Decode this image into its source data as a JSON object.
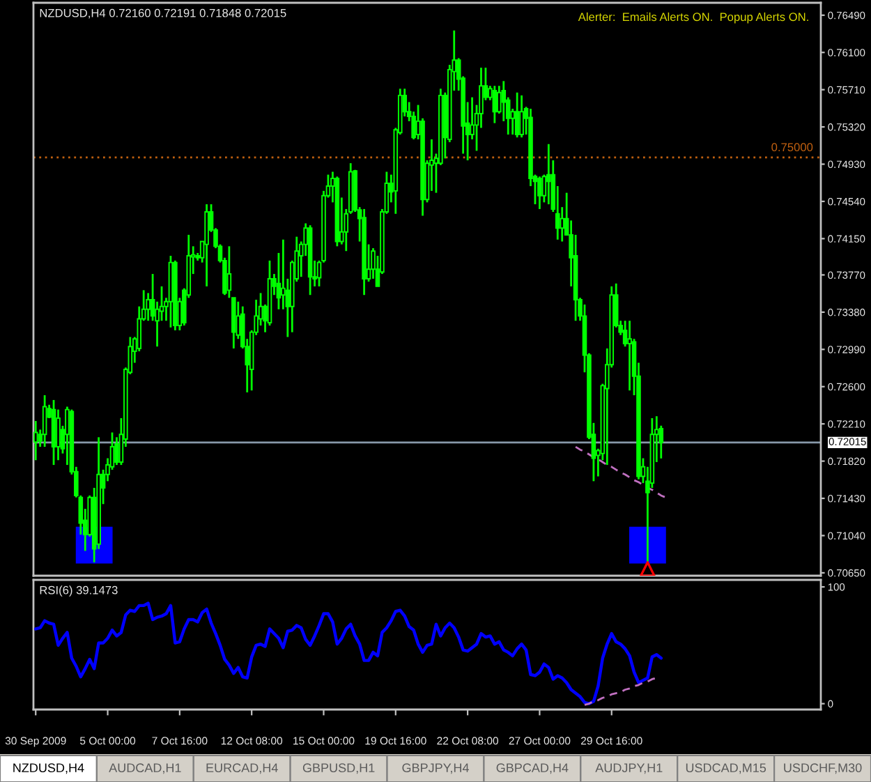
{
  "chart_data": [
    {
      "type": "candlestick",
      "title": "NZDUSD,H4 0.72160 0.72191 0.71848 0.72015",
      "color": "#00ff00",
      "categories": [
        null,
        null,
        null,
        null,
        null,
        null,
        null,
        null,
        null,
        null,
        null,
        null,
        null,
        null,
        null,
        null,
        null,
        null,
        null,
        null,
        null,
        null,
        null,
        null,
        null,
        null,
        null,
        null,
        null,
        null,
        null,
        null,
        null,
        null,
        null,
        null,
        null,
        null,
        null,
        null,
        null,
        null,
        null,
        null,
        null,
        null,
        null,
        null,
        null,
        null,
        null,
        null,
        null,
        null,
        null,
        null,
        null,
        null,
        null,
        null,
        null,
        null,
        null,
        null,
        null,
        null,
        null,
        null,
        null,
        null,
        null,
        null,
        null,
        null,
        null,
        null,
        null,
        null,
        null,
        null,
        null,
        null,
        null,
        null,
        null,
        null,
        null,
        null,
        null,
        null,
        null,
        null,
        null,
        null,
        null,
        null,
        null,
        null,
        null,
        null,
        null,
        null,
        null,
        null,
        null,
        null,
        null,
        null,
        null,
        null,
        null,
        null,
        null,
        null,
        null,
        null,
        null,
        null,
        null,
        null,
        null,
        null,
        null,
        null,
        null,
        null,
        null,
        null,
        null,
        null,
        null,
        null,
        null,
        null,
        null,
        null,
        null,
        null,
        null,
        null,
        null,
        null,
        null,
        null,
        null,
        null,
        null,
        null,
        null,
        null,
        null,
        null,
        null,
        null,
        null,
        null,
        null,
        null,
        null,
        null,
        null,
        null,
        null,
        null,
        null,
        null,
        null,
        null,
        null,
        null,
        null,
        null,
        null,
        null,
        null
      ],
      "ohlc": [
        [
          0.7202,
          0.7224,
          0.7183,
          0.7212
        ],
        [
          0.721,
          0.7215,
          0.7197,
          0.7203
        ],
        [
          0.721,
          0.7251,
          0.7197,
          0.7239
        ],
        [
          0.7237,
          0.7241,
          0.7227,
          0.7228
        ],
        [
          0.7236,
          0.7246,
          0.7178,
          0.7197
        ],
        [
          0.7197,
          0.7236,
          0.7183,
          0.7227
        ],
        [
          0.7215,
          0.7219,
          0.719,
          0.7195
        ],
        [
          0.721,
          0.7239,
          0.7178,
          0.7236
        ],
        [
          0.7234,
          0.7236,
          0.7168,
          0.7171
        ],
        [
          0.7171,
          0.7176,
          0.7144,
          0.7146
        ],
        [
          0.7144,
          0.7146,
          0.7105,
          0.7117
        ],
        [
          0.712,
          0.7132,
          0.7088,
          0.7105
        ],
        [
          0.7105,
          0.7146,
          0.7103,
          0.7144
        ],
        [
          0.7144,
          0.7154,
          0.7076,
          0.709
        ],
        [
          0.7095,
          0.7207,
          0.709,
          0.7168
        ],
        [
          0.7168,
          0.7173,
          0.7137,
          0.7154
        ],
        [
          0.7168,
          0.7185,
          0.7161,
          0.7178
        ],
        [
          0.7176,
          0.7212,
          0.7173,
          0.7197
        ],
        [
          0.72,
          0.7207,
          0.7178,
          0.7181
        ],
        [
          0.7181,
          0.7227,
          0.7178,
          0.721
        ],
        [
          0.7205,
          0.728,
          0.7197,
          0.7278
        ],
        [
          0.7275,
          0.7312,
          0.7273,
          0.7302
        ],
        [
          0.7297,
          0.7312,
          0.7285,
          0.731
        ],
        [
          0.73,
          0.7344,
          0.7297,
          0.7331
        ],
        [
          0.7331,
          0.7361,
          0.7329,
          0.7341
        ],
        [
          0.7341,
          0.7358,
          0.7329,
          0.7351
        ],
        [
          0.7351,
          0.7378,
          0.7329,
          0.7334
        ],
        [
          0.7329,
          0.7349,
          0.7302,
          0.7341
        ],
        [
          0.7339,
          0.7365,
          0.7329,
          0.7344
        ],
        [
          0.7344,
          0.7353,
          0.7329,
          0.7349
        ],
        [
          0.7349,
          0.7397,
          0.7322,
          0.739
        ],
        [
          0.739,
          0.7392,
          0.7319,
          0.7324
        ],
        [
          0.7324,
          0.7353,
          0.7319,
          0.7349
        ],
        [
          0.7361,
          0.7363,
          0.7324,
          0.7327
        ],
        [
          0.7356,
          0.7419,
          0.7353,
          0.7397
        ],
        [
          0.7396,
          0.7407,
          0.7378,
          0.7398
        ],
        [
          0.7397,
          0.74,
          0.7392,
          0.7395
        ],
        [
          0.7395,
          0.7412,
          0.739,
          0.7412
        ],
        [
          0.7409,
          0.7451,
          0.7365,
          0.7443
        ],
        [
          0.7443,
          0.7451,
          0.7422,
          0.7424
        ],
        [
          0.7424,
          0.7426,
          0.7405,
          0.7407
        ],
        [
          0.7407,
          0.7409,
          0.739,
          0.7392
        ],
        [
          0.7392,
          0.7395,
          0.7356,
          0.7358
        ],
        [
          0.7361,
          0.7407,
          0.7353,
          0.7378
        ],
        [
          0.7353,
          0.7353,
          0.73,
          0.7317
        ],
        [
          0.7314,
          0.7349,
          0.731,
          0.7334
        ],
        [
          0.7336,
          0.7344,
          0.73,
          0.7302
        ],
        [
          0.7302,
          0.731,
          0.7254,
          0.7283
        ],
        [
          0.7278,
          0.7319,
          0.7256,
          0.7317
        ],
        [
          0.7317,
          0.7351,
          0.7314,
          0.7334
        ],
        [
          0.7331,
          0.7358,
          0.7324,
          0.7344
        ],
        [
          0.7344,
          0.7346,
          0.7317,
          0.7329
        ],
        [
          0.7327,
          0.7392,
          0.7324,
          0.7373
        ],
        [
          0.7373,
          0.7378,
          0.7356,
          0.7365
        ],
        [
          0.7368,
          0.74,
          0.7341,
          0.7353
        ],
        [
          0.7356,
          0.7414,
          0.7341,
          0.7363
        ],
        [
          0.7361,
          0.7373,
          0.7312,
          0.7344
        ],
        [
          0.7344,
          0.7392,
          0.7317,
          0.739
        ],
        [
          0.7373,
          0.7417,
          0.737,
          0.7402
        ],
        [
          0.7397,
          0.7412,
          0.7375,
          0.7409
        ],
        [
          0.7409,
          0.7431,
          0.7397,
          0.7426
        ],
        [
          0.7426,
          0.7429,
          0.7356,
          0.7375
        ],
        [
          0.7375,
          0.7392,
          0.7365,
          0.7373
        ],
        [
          0.7374,
          0.7392,
          0.7365,
          0.739
        ],
        [
          0.7392,
          0.7465,
          0.739,
          0.746
        ],
        [
          0.746,
          0.7482,
          0.7458,
          0.747
        ],
        [
          0.747,
          0.7485,
          0.7453,
          0.7478
        ],
        [
          0.7478,
          0.748,
          0.7407,
          0.7412
        ],
        [
          0.7412,
          0.7458,
          0.7409,
          0.7422
        ],
        [
          0.7422,
          0.7446,
          0.7402,
          0.7441
        ],
        [
          0.7443,
          0.7494,
          0.7441,
          0.7485
        ],
        [
          0.7486,
          0.7487,
          0.7443,
          0.7445
        ],
        [
          0.7445,
          0.7448,
          0.7412,
          0.7436
        ],
        [
          0.7437,
          0.7446,
          0.7356,
          0.7373
        ],
        [
          0.7373,
          0.7409,
          0.737,
          0.7383
        ],
        [
          0.7383,
          0.7405,
          0.7373,
          0.7402
        ],
        [
          0.7383,
          0.7397,
          0.7365,
          0.7365
        ],
        [
          0.738,
          0.7446,
          0.7378,
          0.7443
        ],
        [
          0.7443,
          0.7485,
          0.7441,
          0.7473
        ],
        [
          0.7473,
          0.7482,
          0.7453,
          0.7464
        ],
        [
          0.7465,
          0.7531,
          0.7441,
          0.7529
        ],
        [
          0.7526,
          0.7572,
          0.7524,
          0.7565
        ],
        [
          0.7565,
          0.7572,
          0.7543,
          0.7548
        ],
        [
          0.7548,
          0.7558,
          0.7538,
          0.7543
        ],
        [
          0.7543,
          0.7548,
          0.7519,
          0.7521
        ],
        [
          0.7524,
          0.7555,
          0.7519,
          0.7538
        ],
        [
          0.7538,
          0.7541,
          0.7439,
          0.7456
        ],
        [
          0.7456,
          0.7497,
          0.7453,
          0.7494
        ],
        [
          0.7492,
          0.7519,
          0.7465,
          0.7497
        ],
        [
          0.7494,
          0.7504,
          0.7463,
          0.7499
        ],
        [
          0.7494,
          0.7572,
          0.7492,
          0.7565
        ],
        [
          0.7565,
          0.7568,
          0.7499,
          0.7521
        ],
        [
          0.7519,
          0.7597,
          0.7516,
          0.7592
        ],
        [
          0.759,
          0.7633,
          0.757,
          0.7602
        ],
        [
          0.7602,
          0.7604,
          0.757,
          0.7582
        ],
        [
          0.7583,
          0.7585,
          0.7504,
          0.7533
        ],
        [
          0.7536,
          0.7558,
          0.7497,
          0.7524
        ],
        [
          0.7524,
          0.7563,
          0.7519,
          0.7534
        ],
        [
          0.7534,
          0.7555,
          0.7507,
          0.7546
        ],
        [
          0.7546,
          0.7594,
          0.7531,
          0.7575
        ],
        [
          0.7575,
          0.7594,
          0.756,
          0.7563
        ],
        [
          0.7563,
          0.7575,
          0.756,
          0.7572
        ],
        [
          0.757,
          0.7575,
          0.7536,
          0.7548
        ],
        [
          0.7548,
          0.7575,
          0.7546,
          0.7568
        ],
        [
          0.757,
          0.758,
          0.7538,
          0.7558
        ],
        [
          0.756,
          0.7563,
          0.7524,
          0.7541
        ],
        [
          0.7541,
          0.7551,
          0.7524,
          0.7548
        ],
        [
          0.7548,
          0.7568,
          0.7521,
          0.7524
        ],
        [
          0.7524,
          0.7565,
          0.7521,
          0.7548
        ],
        [
          0.7551,
          0.7553,
          0.7524,
          0.7541
        ],
        [
          0.7542,
          0.7551,
          0.747,
          0.7478
        ],
        [
          0.748,
          0.7482,
          0.7451,
          0.7475
        ],
        [
          0.7478,
          0.748,
          0.7446,
          0.746
        ],
        [
          0.746,
          0.7482,
          0.7453,
          0.748
        ],
        [
          0.7482,
          0.7514,
          0.7451,
          0.7475
        ],
        [
          0.7482,
          0.7497,
          0.7443,
          0.7446
        ],
        [
          0.7441,
          0.747,
          0.7414,
          0.7426
        ],
        [
          0.7426,
          0.7448,
          0.7412,
          0.7436
        ],
        [
          0.7436,
          0.7463,
          0.7419,
          0.7419
        ],
        [
          0.7419,
          0.7434,
          0.7365,
          0.7395
        ],
        [
          0.7397,
          0.7419,
          0.7329,
          0.7351
        ],
        [
          0.7351,
          0.7353,
          0.7329,
          0.7334
        ],
        [
          0.7334,
          0.7346,
          0.7275,
          0.7293
        ],
        [
          0.7293,
          0.7295,
          0.7205,
          0.7207
        ],
        [
          0.721,
          0.7222,
          0.7161,
          0.7185
        ],
        [
          0.7188,
          0.7195,
          0.7166,
          0.7193
        ],
        [
          0.719,
          0.7263,
          0.7183,
          0.7261
        ],
        [
          0.7258,
          0.73,
          0.7178,
          0.7283
        ],
        [
          0.7283,
          0.7365,
          0.728,
          0.7356
        ],
        [
          0.7356,
          0.7368,
          0.7322,
          0.7324
        ],
        [
          0.7324,
          0.7329,
          0.7314,
          0.7317
        ],
        [
          0.7319,
          0.7329,
          0.7302,
          0.7305
        ],
        [
          0.7305,
          0.7329,
          0.7256,
          0.731
        ],
        [
          0.7307,
          0.731,
          0.7251,
          0.7271
        ],
        [
          0.7271,
          0.7285,
          0.7163,
          0.7166
        ],
        [
          0.7166,
          0.7185,
          0.7159,
          0.7176
        ],
        [
          0.7161,
          0.7176,
          0.7076,
          0.7149
        ],
        [
          0.7159,
          0.7227,
          0.7154,
          0.721
        ],
        [
          0.721,
          0.7229,
          0.7181,
          0.7215
        ],
        [
          0.7216,
          0.72191,
          0.71848,
          0.72015
        ],
        null,
        null,
        null,
        null,
        null,
        null,
        null,
        null,
        null,
        null,
        null,
        null,
        null,
        null,
        null,
        null,
        null,
        null,
        null,
        null,
        null,
        null,
        null,
        null,
        null,
        null,
        null,
        null,
        null,
        null,
        null,
        null,
        null,
        null,
        null
      ],
      "ylim": [
        0.7062,
        0.7662
      ],
      "yticks": [
        {
          "value": 0.7649,
          "label": "0.76490"
        },
        {
          "value": 0.761,
          "label": "0.76100"
        },
        {
          "value": 0.7571,
          "label": "0.75710"
        },
        {
          "value": 0.7532,
          "label": "0.75320"
        },
        {
          "value": 0.7493,
          "label": "0.74930"
        },
        {
          "value": 0.7454,
          "label": "0.74540"
        },
        {
          "value": 0.7415,
          "label": "0.74150"
        },
        {
          "value": 0.7377,
          "label": "0.73770"
        },
        {
          "value": 0.7338,
          "label": "0.73380"
        },
        {
          "value": 0.7299,
          "label": "0.72990"
        },
        {
          "value": 0.726,
          "label": "0.72600"
        },
        {
          "value": 0.7221,
          "label": "0.72210"
        },
        {
          "value": 0.7182,
          "label": "0.71820"
        },
        {
          "value": 0.7143,
          "label": "0.71430"
        },
        {
          "value": 0.7104,
          "label": "0.71040"
        },
        {
          "value": 0.7065,
          "label": "0.70650"
        }
      ],
      "tick_labels": "y",
      "ref_lines": [
        {
          "axis": "y",
          "value": 0.75,
          "label": "0.75000",
          "color": "#c06010",
          "line_style": "dotted"
        },
        {
          "axis": "y",
          "value": 0.72015,
          "label": "0.72015",
          "color": "#8899aa",
          "line_style": "solid"
        }
      ],
      "series": [
        {
          "type": "line",
          "color": "#c070c0",
          "line_style": "dashed",
          "values": [
            null,
            null,
            null,
            null,
            null,
            null,
            null,
            null,
            null,
            null,
            null,
            null,
            null,
            null,
            null,
            null,
            null,
            null,
            null,
            null,
            null,
            null,
            null,
            null,
            null,
            null,
            null,
            null,
            null,
            null,
            null,
            null,
            null,
            null,
            null,
            null,
            null,
            null,
            null,
            null,
            null,
            null,
            null,
            null,
            null,
            null,
            null,
            null,
            null,
            null,
            null,
            null,
            null,
            null,
            null,
            null,
            null,
            null,
            null,
            null,
            null,
            null,
            null,
            null,
            null,
            null,
            null,
            null,
            null,
            null,
            null,
            null,
            null,
            null,
            null,
            null,
            null,
            null,
            null,
            null,
            null,
            null,
            null,
            null,
            null,
            null,
            null,
            null,
            null,
            null,
            null,
            null,
            null,
            null,
            null,
            null,
            null,
            null,
            null,
            null,
            null,
            null,
            null,
            null,
            null,
            null,
            null,
            null,
            null,
            null,
            null,
            null,
            null,
            null,
            null,
            null,
            null,
            null,
            null,
            null,
            0.7197,
            0.7194,
            0.7192,
            0.7189,
            0.7186,
            0.7184,
            0.7181,
            0.7178,
            0.7176,
            0.7173,
            0.717,
            0.7168,
            0.7165,
            0.7162,
            0.716,
            0.7157,
            0.7154,
            0.7152,
            0.7149,
            0.7146,
            0.7144,
            null,
            null,
            null,
            null,
            null,
            null,
            null,
            null,
            null,
            null,
            null,
            null,
            null,
            null,
            null,
            null,
            null,
            null,
            null,
            null,
            null,
            null,
            null,
            null,
            null,
            null,
            null,
            null,
            null,
            null,
            null,
            null,
            null,
            null
          ]
        },
        {
          "type": "scatter",
          "color": "#0000ff",
          "marker": "square",
          "values": [
            null,
            null,
            null,
            null,
            null,
            null,
            null,
            null,
            null,
            null,
            null,
            null,
            null,
            0.7094,
            null,
            null,
            null,
            null,
            null,
            null,
            null,
            null,
            null,
            null,
            null,
            null,
            null,
            null,
            null,
            null,
            null,
            null,
            null,
            null,
            null,
            null,
            null,
            null,
            null,
            null,
            null,
            null,
            null,
            null,
            null,
            null,
            null,
            null,
            null,
            null,
            null,
            null,
            null,
            null,
            null,
            null,
            null,
            null,
            null,
            null,
            null,
            null,
            null,
            null,
            null,
            null,
            null,
            null,
            null,
            null,
            null,
            null,
            null,
            null,
            null,
            null,
            null,
            null,
            null,
            null,
            null,
            null,
            null,
            null,
            null,
            null,
            null,
            null,
            null,
            null,
            null,
            null,
            null,
            null,
            null,
            null,
            null,
            null,
            null,
            null,
            null,
            null,
            null,
            null,
            null,
            null,
            null,
            null,
            null,
            null,
            null,
            null,
            null,
            null,
            null,
            null,
            null,
            null,
            null,
            null,
            null,
            null,
            null,
            null,
            null,
            null,
            null,
            null,
            null,
            null,
            null,
            null,
            null,
            null,
            null,
            null,
            0.7094,
            null,
            null,
            null,
            null,
            null,
            null,
            null,
            null,
            null,
            null,
            null,
            null,
            null,
            null,
            null,
            null,
            null,
            null,
            null,
            null,
            null,
            null,
            null,
            null,
            null,
            null,
            null,
            null,
            null,
            null,
            null,
            null,
            null,
            null,
            null,
            null,
            null,
            null
          ]
        },
        {
          "type": "scatter",
          "color": "#ff0000",
          "marker": "triangle",
          "values": [
            null,
            null,
            null,
            null,
            null,
            null,
            null,
            null,
            null,
            null,
            null,
            null,
            null,
            null,
            null,
            null,
            null,
            null,
            null,
            null,
            null,
            null,
            null,
            null,
            null,
            null,
            null,
            null,
            null,
            null,
            null,
            null,
            null,
            null,
            null,
            null,
            null,
            null,
            null,
            null,
            null,
            null,
            null,
            null,
            null,
            null,
            null,
            null,
            null,
            null,
            null,
            null,
            null,
            null,
            null,
            null,
            null,
            null,
            null,
            null,
            null,
            null,
            null,
            null,
            null,
            null,
            null,
            null,
            null,
            null,
            null,
            null,
            null,
            null,
            null,
            null,
            null,
            null,
            null,
            null,
            null,
            null,
            null,
            null,
            null,
            null,
            null,
            null,
            null,
            null,
            null,
            null,
            null,
            null,
            null,
            null,
            null,
            null,
            null,
            null,
            null,
            null,
            null,
            null,
            null,
            null,
            null,
            null,
            null,
            null,
            null,
            null,
            null,
            null,
            null,
            null,
            null,
            null,
            null,
            null,
            null,
            null,
            null,
            null,
            null,
            null,
            null,
            null,
            null,
            null,
            null,
            null,
            null,
            null,
            null,
            null,
            0.7069,
            null,
            null,
            null,
            null,
            null,
            null,
            null,
            null,
            null,
            null,
            null,
            null,
            null,
            null,
            null,
            null,
            null,
            null,
            null,
            null,
            null,
            null,
            null,
            null,
            null,
            null,
            null,
            null,
            null,
            null,
            null,
            null,
            null,
            null,
            null,
            null,
            null,
            null
          ]
        }
      ],
      "annotations": [
        "Alerter:  Emails Alerts ON.  Popup Alerts ON."
      ]
    },
    {
      "type": "line",
      "title": "RSI(6) 39.1473",
      "categories": [
        "30 Sep 2009",
        null,
        null,
        null,
        null,
        null,
        null,
        null,
        null,
        null,
        null,
        null,
        null,
        null,
        null,
        null,
        "5 Oct 00:00",
        null,
        null,
        null,
        null,
        null,
        null,
        null,
        null,
        null,
        null,
        null,
        null,
        null,
        null,
        null,
        "7 Oct 16:00",
        null,
        null,
        null,
        null,
        null,
        null,
        null,
        null,
        null,
        null,
        null,
        null,
        null,
        null,
        null,
        "12 Oct 08:00",
        null,
        null,
        null,
        null,
        null,
        null,
        null,
        null,
        null,
        null,
        null,
        null,
        null,
        null,
        null,
        "15 Oct 00:00",
        null,
        null,
        null,
        null,
        null,
        null,
        null,
        null,
        null,
        null,
        null,
        null,
        null,
        null,
        null,
        "19 Oct 16:00",
        null,
        null,
        null,
        null,
        null,
        null,
        null,
        null,
        null,
        null,
        null,
        null,
        null,
        null,
        null,
        "22 Oct 08:00",
        null,
        null,
        null,
        null,
        null,
        null,
        null,
        null,
        null,
        null,
        null,
        null,
        null,
        null,
        null,
        "27 Oct 00:00",
        null,
        null,
        null,
        null,
        null,
        null,
        null,
        null,
        null,
        null,
        null,
        null,
        null,
        null,
        null,
        "29 Oct 16:00",
        null,
        null,
        null,
        null,
        null,
        null,
        null,
        null,
        null,
        null,
        null,
        null,
        null,
        null,
        null,
        null,
        null,
        null,
        null,
        null,
        null,
        null,
        null,
        null,
        null,
        null,
        null,
        null,
        null,
        null,
        null,
        null,
        null,
        null,
        null,
        null,
        null,
        null,
        null,
        null,
        null,
        null,
        null,
        null,
        null,
        null
      ],
      "ylim": [
        -5,
        106
      ],
      "yticks": [
        0,
        100
      ],
      "series": [
        {
          "color": "#0000ff",
          "values": [
            64,
            65,
            71,
            69,
            68,
            50,
            56,
            61,
            39,
            32,
            23,
            30,
            38,
            30,
            52,
            52,
            56,
            63,
            58,
            61,
            76,
            80,
            79,
            84,
            84,
            86,
            72,
            74,
            75,
            77,
            84,
            52,
            53,
            64,
            72,
            72,
            70,
            78,
            81,
            69,
            60,
            50,
            38,
            33,
            26,
            31,
            23,
            22,
            40,
            50,
            51,
            49,
            64,
            60,
            56,
            48,
            62,
            63,
            67,
            65,
            55,
            50,
            58,
            67,
            77,
            77,
            70,
            51,
            56,
            64,
            68,
            58,
            51,
            37,
            37,
            44,
            41,
            61,
            65,
            71,
            79,
            80,
            75,
            66,
            63,
            51,
            44,
            50,
            51,
            68,
            58,
            65,
            69,
            65,
            57,
            46,
            45,
            48,
            51,
            60,
            57,
            58,
            51,
            53,
            46,
            44,
            41,
            47,
            51,
            46,
            25,
            24,
            27,
            34,
            31,
            21,
            24,
            22,
            18,
            12,
            9,
            6,
            1,
            0,
            2,
            15,
            39,
            51,
            60,
            53,
            51,
            47,
            41,
            27,
            18,
            20,
            22,
            40,
            42,
            39,
            null,
            null,
            null,
            null,
            null,
            null,
            null,
            null,
            null,
            null,
            null,
            null,
            null,
            null,
            null,
            null,
            null,
            null,
            null,
            null,
            null,
            null,
            null,
            null,
            null,
            null,
            null,
            null,
            null,
            null,
            null,
            null,
            null,
            null,
            null
          ]
        },
        {
          "type": "line",
          "color": "#c070c0",
          "line_style": "dashed",
          "values": [
            null,
            null,
            null,
            null,
            null,
            null,
            null,
            null,
            null,
            null,
            null,
            null,
            null,
            null,
            null,
            null,
            null,
            null,
            null,
            null,
            null,
            null,
            null,
            null,
            null,
            null,
            null,
            null,
            null,
            null,
            null,
            null,
            null,
            null,
            null,
            null,
            null,
            null,
            null,
            null,
            null,
            null,
            null,
            null,
            null,
            null,
            null,
            null,
            null,
            null,
            null,
            null,
            null,
            null,
            null,
            null,
            null,
            null,
            null,
            null,
            null,
            null,
            null,
            null,
            null,
            null,
            null,
            null,
            null,
            null,
            null,
            null,
            null,
            null,
            null,
            null,
            null,
            null,
            null,
            null,
            null,
            null,
            null,
            null,
            null,
            null,
            null,
            null,
            null,
            null,
            null,
            null,
            null,
            null,
            null,
            null,
            null,
            null,
            null,
            null,
            null,
            null,
            null,
            null,
            null,
            null,
            null,
            null,
            null,
            null,
            null,
            null,
            null,
            null,
            null,
            null,
            null,
            null,
            null,
            null,
            null,
            null,
            -1,
            0,
            2,
            3,
            5,
            6,
            8,
            9,
            10,
            12,
            13,
            15,
            16,
            18,
            19,
            21,
            22,
            null,
            null,
            null,
            null,
            null,
            null,
            null,
            null,
            null,
            null,
            null,
            null,
            null,
            null,
            null,
            null,
            null,
            null,
            null,
            null,
            null,
            null,
            null,
            null,
            null,
            null,
            null,
            null,
            null,
            null,
            null,
            null,
            null,
            null,
            null,
            null
          ]
        }
      ]
    },
    {
      "type": "other",
      "annotations": [
        "NZDUSD,H4",
        "AUDCAD,H1",
        "EURCAD,H4",
        "GBPUSD,H1",
        "GBPJPY,H4",
        "GBPCAD,H4",
        "AUDJPY,H1",
        "USDCAD,M15",
        "USDCHF,M30"
      ]
    }
  ]
}
